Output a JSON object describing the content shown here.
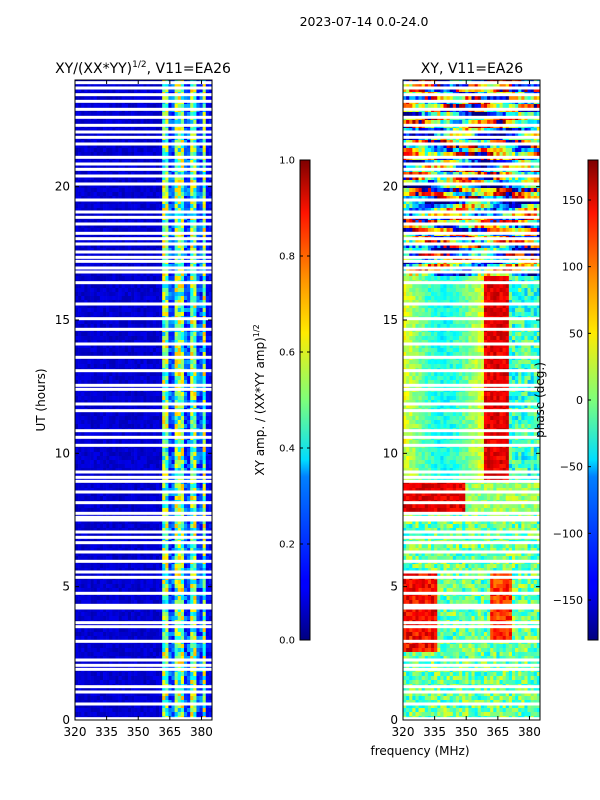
{
  "figure": {
    "suptitle": "2023-07-14 0.0-24.0",
    "shared_xlabel": "frequency (MHz)"
  },
  "chart_data": [
    {
      "type": "heatmap",
      "title": "XY/(XX*YY)",
      "title_power": "1/2",
      "title_suffix": ", V11=EA26",
      "xlabel": "",
      "ylabel": "UT (hours)",
      "xlim": [
        320,
        385
      ],
      "ylim": [
        0,
        24
      ],
      "xticks": [
        320,
        335,
        350,
        365,
        380
      ],
      "yticks": [
        0,
        5,
        10,
        15,
        20
      ],
      "colorbar": {
        "label": "XY amp. / (XX*YY amp)",
        "label_power": "1/2",
        "range": [
          0.0,
          1.0
        ],
        "ticks": [
          "0.0",
          "0.2",
          "0.4",
          "0.6",
          "0.8",
          "1.0"
        ],
        "colormap": "jet"
      },
      "description_values": {
        "background_level": 0.05,
        "high_channel_band_MHz": [
          362,
          382
        ],
        "high_channel_level_range": [
          0.3,
          0.7
        ]
      }
    },
    {
      "type": "heatmap",
      "title": "XY, V11=EA26",
      "xlabel": "frequency (MHz)",
      "ylabel": "",
      "xlim": [
        320,
        385
      ],
      "ylim": [
        0,
        24
      ],
      "xticks": [
        320,
        335,
        350,
        365,
        380
      ],
      "yticks": [
        0,
        5,
        10,
        15,
        20
      ],
      "colorbar": {
        "label": "phase (deg.)",
        "range": [
          -180,
          180
        ],
        "ticks": [
          "150",
          "100",
          "50",
          "0",
          "−50",
          "−100",
          "−150"
        ],
        "tick_values": [
          150,
          100,
          50,
          0,
          -50,
          -100,
          -150
        ],
        "colormap": "jet"
      }
    }
  ],
  "flagged_hours": [
    0.05,
    0.6,
    1.05,
    1.25,
    1.9,
    2.05,
    2.25,
    2.95,
    3.5,
    3.65,
    4.2,
    4.3,
    4.75,
    5.35,
    5.55,
    5.95,
    6.3,
    6.65,
    6.85,
    7.05,
    7.5,
    7.6,
    7.75,
    8.15,
    8.55,
    8.95,
    9.1,
    9.3,
    10.3,
    10.6,
    10.85,
    11.6,
    11.85,
    12.4,
    12.55,
    13.1,
    13.6,
    14.1,
    14.65,
    15.05,
    15.6,
    16.4,
    16.8,
    16.95,
    17.2,
    17.35,
    17.55,
    17.85,
    18.05,
    18.25,
    18.6,
    18.85,
    19.05,
    19.5,
    20.1,
    20.4,
    20.65,
    20.85,
    21.1,
    21.6,
    21.85,
    22.05,
    22.3,
    22.6,
    22.9,
    23.2,
    23.45,
    23.7,
    23.9
  ]
}
